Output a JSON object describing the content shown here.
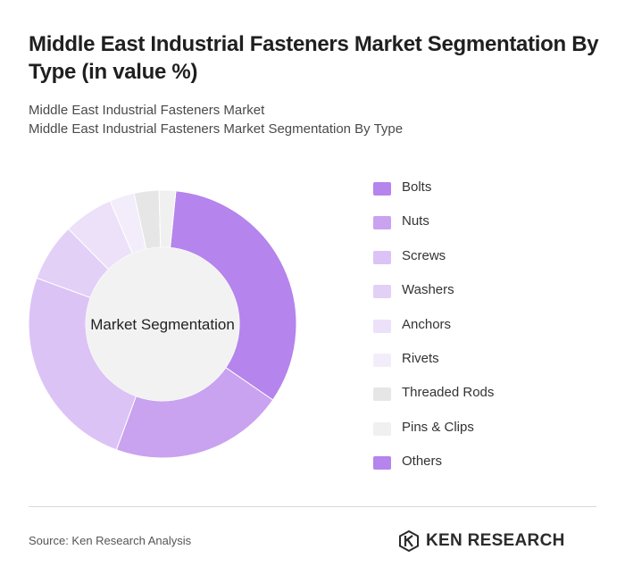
{
  "title": "Middle East Industrial Fasteners Market Segmentation By Type (in value %)",
  "subtitle_lines": [
    "Middle East Industrial Fasteners Market",
    "Middle East Industrial Fasteners Market Segmentation By Type"
  ],
  "chart_data": {
    "type": "pie",
    "style": "donut",
    "center_label": "Market Segmentation",
    "categories": [
      "Bolts",
      "Nuts",
      "Screws",
      "Washers",
      "Anchors",
      "Rivets",
      "Threaded Rods",
      "Pins & Clips",
      "Others"
    ],
    "values": [
      33,
      21,
      25,
      7,
      6,
      3,
      3,
      2,
      0
    ],
    "colors": [
      "#b584ec",
      "#c9a2f0",
      "#dcc3f6",
      "#e2d0f6",
      "#ece1f9",
      "#f3edfb",
      "#e6e6e6",
      "#f0f0f0",
      "#b584ec"
    ],
    "legend_position": "right"
  },
  "footer": {
    "source": "Source: Ken Research Analysis",
    "brand": "KEN RESEARCH",
    "brand_icon": "ken-research-logo-icon"
  }
}
